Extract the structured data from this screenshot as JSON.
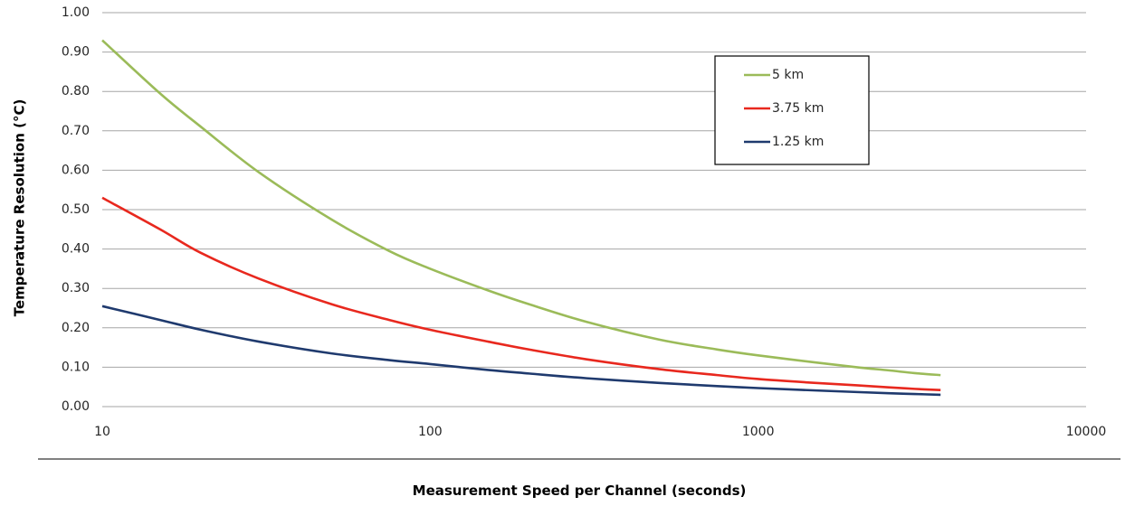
{
  "chart_data": {
    "type": "line",
    "title": "",
    "xlabel": "Measurement Speed per Channel (seconds)",
    "ylabel": "Temperature Resolution (°C)",
    "x_scale": "log",
    "xlim": [
      10,
      10000
    ],
    "ylim": [
      0,
      1.0
    ],
    "x_ticks": [
      "10",
      "100",
      "1000",
      "10000"
    ],
    "y_ticks": [
      "0.00",
      "0.10",
      "0.20",
      "0.30",
      "0.40",
      "0.50",
      "0.60",
      "0.70",
      "0.80",
      "0.90",
      "1.00"
    ],
    "grid": "horizontal",
    "legend_position": "top-right",
    "x": [
      10,
      15,
      20,
      30,
      50,
      75,
      100,
      150,
      200,
      300,
      500,
      750,
      1000,
      1500,
      2000,
      2500,
      3000,
      3600
    ],
    "series": [
      {
        "name": "5 km",
        "color": "#9bbb59",
        "values": [
          0.93,
          0.795,
          0.71,
          0.595,
          0.475,
          0.395,
          0.35,
          0.295,
          0.26,
          0.215,
          0.17,
          0.145,
          0.13,
          0.112,
          0.1,
          0.092,
          0.085,
          0.08
        ]
      },
      {
        "name": "3.75 km",
        "color": "#e8281e",
        "values": [
          0.53,
          0.45,
          0.39,
          0.325,
          0.26,
          0.22,
          0.195,
          0.165,
          0.145,
          0.12,
          0.095,
          0.08,
          0.07,
          0.06,
          0.054,
          0.049,
          0.045,
          0.042
        ]
      },
      {
        "name": "1.25 km",
        "color": "#1f3a6e",
        "values": [
          0.255,
          0.22,
          0.195,
          0.165,
          0.135,
          0.118,
          0.108,
          0.093,
          0.084,
          0.072,
          0.06,
          0.052,
          0.047,
          0.041,
          0.037,
          0.034,
          0.032,
          0.03
        ]
      }
    ]
  }
}
